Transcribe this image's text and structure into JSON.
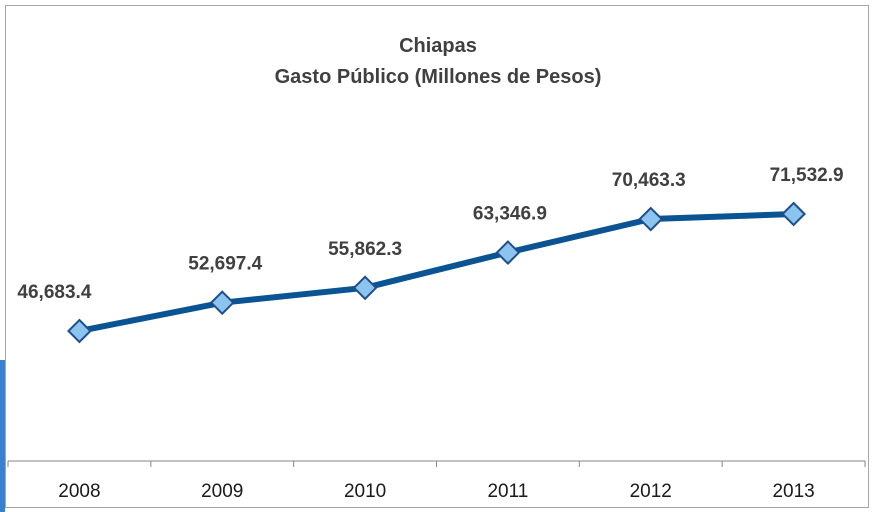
{
  "chart_data": {
    "type": "line",
    "title": "Chiapas",
    "subtitle": "Gasto Público (Millones de Pesos)",
    "categories": [
      "2008",
      "2009",
      "2010",
      "2011",
      "2012",
      "2013"
    ],
    "series": [
      {
        "values": [
          46683.4,
          52697.4,
          55862.3,
          63346.9,
          70463.3,
          71532.9
        ],
        "labels": [
          "46,683.4",
          "52,697.4",
          "55,862.3",
          "63,346.9",
          "70,463.3",
          "71,532.9"
        ]
      }
    ],
    "line_color": "#0a5494",
    "marker_fill": "#8cc4f0",
    "marker_stroke": "#1f4e8c",
    "marker_shape": "diamond",
    "grid": false,
    "legend": "none"
  }
}
